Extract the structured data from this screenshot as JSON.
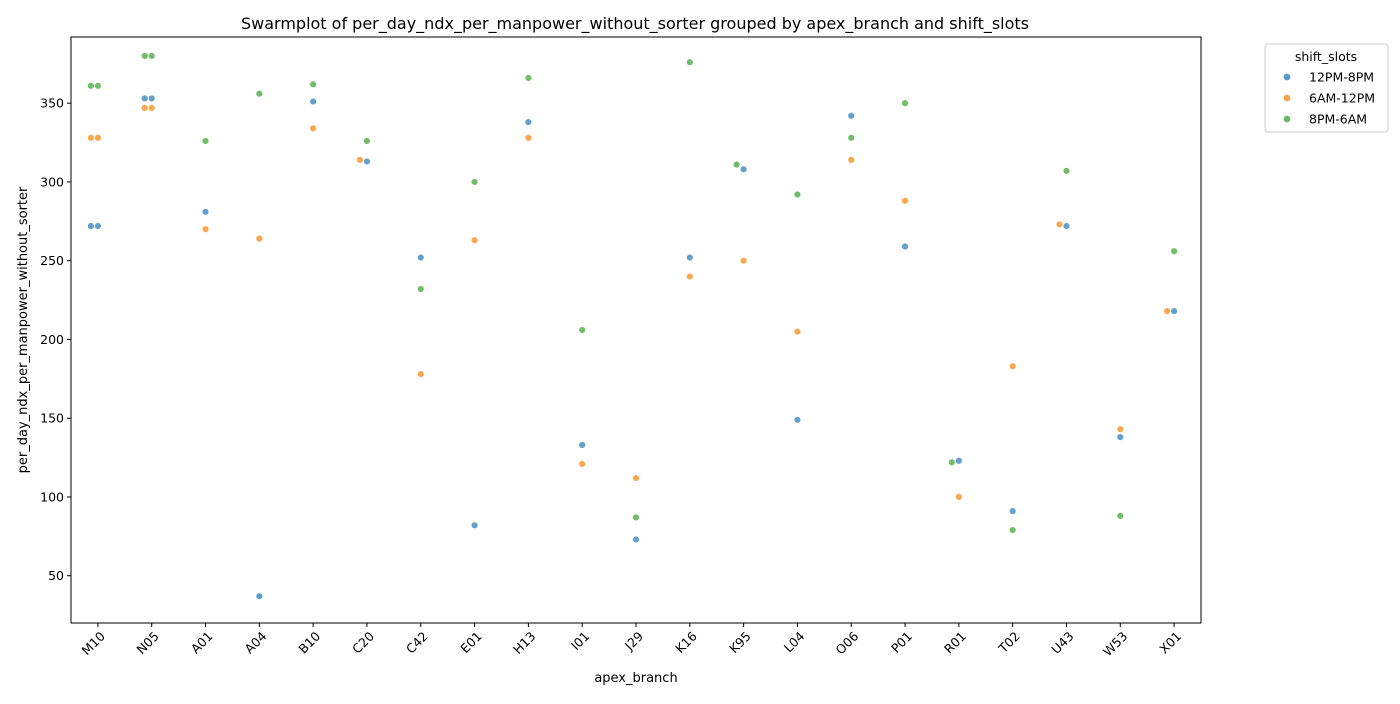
{
  "chart_data": {
    "type": "scatter",
    "title": "Swarmplot of per_day_ndx_per_manpower_without_sorter grouped by apex_branch and shift_slots",
    "xlabel": "apex_branch",
    "ylabel": "per_day_ndx_per_manpower_without_sorter",
    "categories": [
      "M10",
      "N05",
      "A01",
      "A04",
      "B10",
      "C20",
      "C42",
      "E01",
      "H13",
      "I01",
      "J29",
      "K16",
      "K95",
      "L04",
      "O06",
      "P01",
      "R01",
      "T02",
      "U43",
      "W53",
      "X01"
    ],
    "ylim": [
      20,
      392
    ],
    "yticks": [
      50,
      100,
      150,
      200,
      250,
      300,
      350
    ],
    "grid": false,
    "legend": {
      "title": "shift_slots",
      "placement": "outside top-right"
    },
    "series": [
      {
        "name": "12PM-8PM",
        "color": "#5b9bc9",
        "values": [
          [
            272,
            272
          ],
          [
            353,
            353
          ],
          [
            281
          ],
          [
            37
          ],
          [
            351
          ],
          [
            313
          ],
          [
            252
          ],
          [
            82
          ],
          [
            338
          ],
          [
            133
          ],
          [
            73
          ],
          [
            252
          ],
          [
            308
          ],
          [
            149
          ],
          [
            342
          ],
          [
            259
          ],
          [
            123
          ],
          [
            91
          ],
          [
            272
          ],
          [
            138
          ],
          [
            218
          ]
        ]
      },
      {
        "name": "6AM-12PM",
        "color": "#faa347",
        "values": [
          [
            328,
            328
          ],
          [
            347,
            347
          ],
          [
            270
          ],
          [
            264
          ],
          [
            334
          ],
          [
            314
          ],
          [
            178
          ],
          [
            263
          ],
          [
            328
          ],
          [
            121
          ],
          [
            112
          ],
          [
            240
          ],
          [
            250
          ],
          [
            205
          ],
          [
            314
          ],
          [
            288
          ],
          [
            100
          ],
          [
            183
          ],
          [
            273
          ],
          [
            143
          ],
          [
            218
          ]
        ]
      },
      {
        "name": "8PM-6AM",
        "color": "#6ab962",
        "values": [
          [
            361,
            361
          ],
          [
            380,
            380
          ],
          [
            326
          ],
          [
            356
          ],
          [
            362
          ],
          [
            326
          ],
          [
            232
          ],
          [
            300
          ],
          [
            366
          ],
          [
            206
          ],
          [
            87
          ],
          [
            376
          ],
          [
            311
          ],
          [
            292
          ],
          [
            328
          ],
          [
            350
          ],
          [
            122
          ],
          [
            79
          ],
          [
            307
          ],
          [
            88
          ],
          [
            256
          ]
        ]
      }
    ]
  }
}
